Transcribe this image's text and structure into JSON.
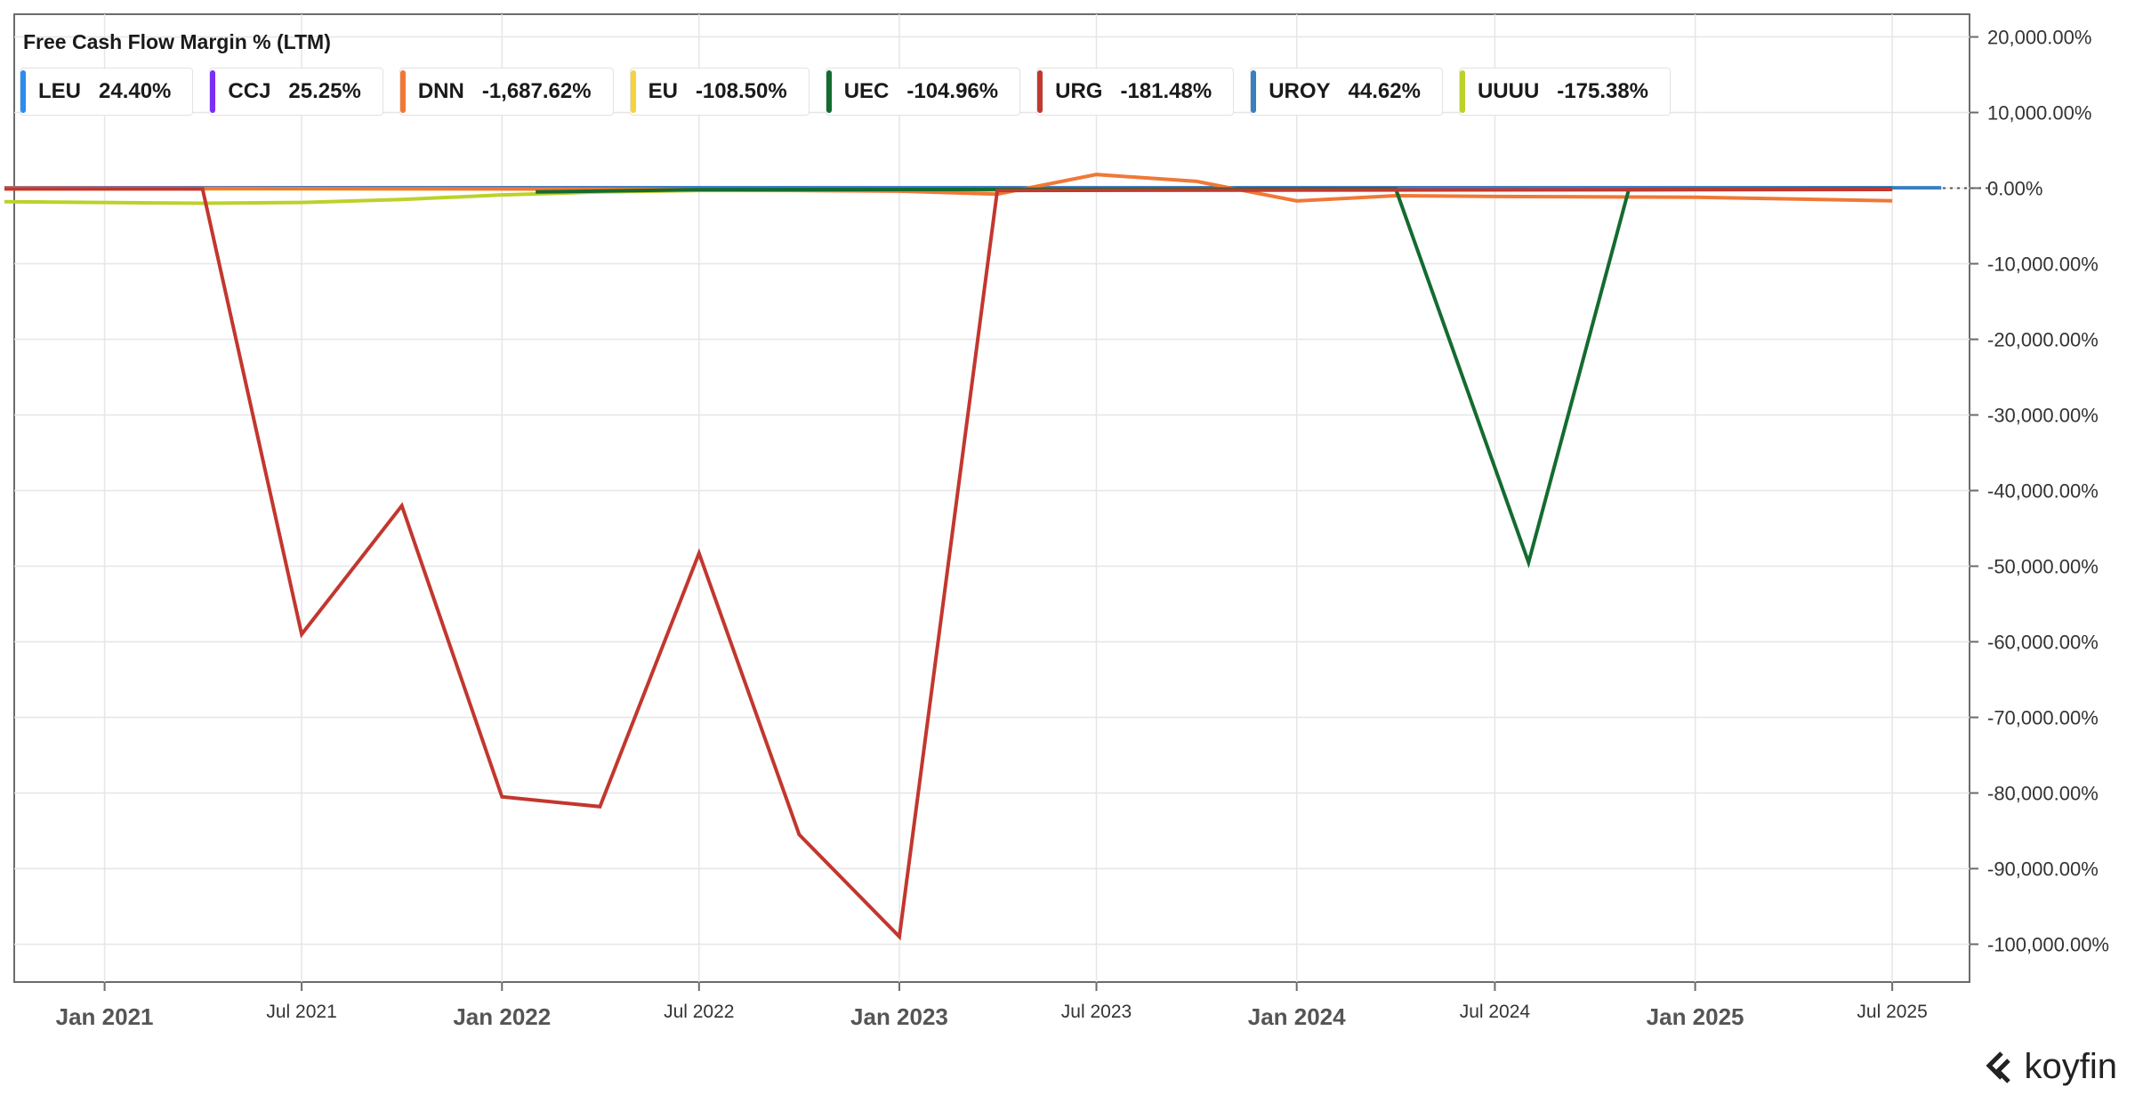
{
  "brand": {
    "name": "koyfin"
  },
  "legend": [
    {
      "symbol": "LEU",
      "value": "24.40%",
      "color": "#2a8cf0"
    },
    {
      "symbol": "CCJ",
      "value": "25.25%",
      "color": "#7b2ff2"
    },
    {
      "symbol": "DNN",
      "value": "-1,687.62%",
      "color": "#f07836"
    },
    {
      "symbol": "EU",
      "value": "-108.50%",
      "color": "#f7d23a"
    },
    {
      "symbol": "UEC",
      "value": "-104.96%",
      "color": "#146b30"
    },
    {
      "symbol": "URG",
      "value": "-181.48%",
      "color": "#c2372e"
    },
    {
      "symbol": "UROY",
      "value": "44.62%",
      "color": "#3a7fbf"
    },
    {
      "symbol": "UUUU",
      "value": "-175.38%",
      "color": "#bcd12a"
    }
  ],
  "chart_data": {
    "type": "line",
    "title": "Free Cash Flow Margin % (LTM)",
    "ylim": [
      -105000,
      23000
    ],
    "xlim": [
      "2020-10-10",
      "2025-09-10"
    ],
    "y_ticks": [
      20000,
      10000,
      0,
      -10000,
      -20000,
      -30000,
      -40000,
      -50000,
      -60000,
      -70000,
      -80000,
      -90000,
      -100000
    ],
    "y_tick_labels": [
      "20,000.00%",
      "10,000.00%",
      "0.00%",
      "-10,000.00%",
      "-20,000.00%",
      "-30,000.00%",
      "-40,000.00%",
      "-50,000.00%",
      "-60,000.00%",
      "-70,000.00%",
      "-80,000.00%",
      "-90,000.00%",
      "-100,000.00%"
    ],
    "x_ticks": [
      {
        "date": "2021-01-01",
        "label": "Jan 2021",
        "major": true
      },
      {
        "date": "2021-07-01",
        "label": "Jul 2021",
        "major": false
      },
      {
        "date": "2022-01-01",
        "label": "Jan 2022",
        "major": true
      },
      {
        "date": "2022-07-01",
        "label": "Jul 2022",
        "major": false
      },
      {
        "date": "2023-01-01",
        "label": "Jan 2023",
        "major": true
      },
      {
        "date": "2023-07-01",
        "label": "Jul 2023",
        "major": false
      },
      {
        "date": "2024-01-01",
        "label": "Jan 2024",
        "major": true
      },
      {
        "date": "2024-07-01",
        "label": "Jul 2024",
        "major": false
      },
      {
        "date": "2025-01-01",
        "label": "Jan 2025",
        "major": true
      },
      {
        "date": "2025-07-01",
        "label": "Jul 2025",
        "major": false
      }
    ],
    "grid": true,
    "legend_position": "top-left",
    "series": [
      {
        "name": "UUUU",
        "color": "#bcd12a",
        "points": [
          [
            "2020-10-01",
            -1800
          ],
          [
            "2021-04-01",
            -2000
          ],
          [
            "2021-07-01",
            -1900
          ],
          [
            "2021-10-01",
            -1500
          ],
          [
            "2022-01-01",
            -900
          ],
          [
            "2022-04-01",
            -500
          ],
          [
            "2022-07-01",
            -300
          ],
          [
            "2022-10-01",
            -300
          ],
          [
            "2023-01-01",
            -350
          ],
          [
            "2023-04-01",
            -250
          ],
          [
            "2023-07-01",
            -150
          ],
          [
            "2024-01-01",
            -180
          ],
          [
            "2025-07-01",
            -175
          ]
        ]
      },
      {
        "name": "EU",
        "color": "#f7d23a",
        "points": [
          [
            "2020-10-01",
            -100
          ],
          [
            "2022-10-01",
            -100
          ],
          [
            "2023-01-01",
            -200
          ],
          [
            "2023-04-01",
            -150
          ],
          [
            "2025-07-01",
            -108
          ]
        ]
      },
      {
        "name": "LEU",
        "color": "#2a8cf0",
        "points": [
          [
            "2020-10-01",
            20
          ],
          [
            "2025-07-01",
            24
          ]
        ]
      },
      {
        "name": "CCJ",
        "color": "#7b2ff2",
        "points": [
          [
            "2020-10-01",
            20
          ],
          [
            "2025-07-01",
            25
          ]
        ]
      },
      {
        "name": "UROY",
        "color": "#3a7fbf",
        "points": [
          [
            "2020-10-01",
            40
          ],
          [
            "2025-08-15",
            45
          ]
        ]
      },
      {
        "name": "DNN",
        "color": "#f07836",
        "points": [
          [
            "2020-10-01",
            0
          ],
          [
            "2022-01-01",
            -100
          ],
          [
            "2022-07-01",
            -200
          ],
          [
            "2023-01-01",
            -400
          ],
          [
            "2023-04-01",
            -800
          ],
          [
            "2023-07-01",
            1800
          ],
          [
            "2023-10-01",
            900
          ],
          [
            "2024-01-01",
            -1700
          ],
          [
            "2024-04-01",
            -1000
          ],
          [
            "2024-07-01",
            -1100
          ],
          [
            "2025-01-01",
            -1200
          ],
          [
            "2025-07-01",
            -1688
          ]
        ]
      },
      {
        "name": "UEC",
        "color": "#146b30",
        "points": [
          [
            "2022-02-01",
            -500
          ],
          [
            "2022-07-01",
            -200
          ],
          [
            "2024-04-01",
            -100
          ],
          [
            "2024-08-01",
            -49500
          ],
          [
            "2024-11-01",
            -200
          ],
          [
            "2025-07-01",
            -105
          ]
        ]
      },
      {
        "name": "URG",
        "color": "#c2372e",
        "points": [
          [
            "2020-10-01",
            -100
          ],
          [
            "2021-04-01",
            -100
          ],
          [
            "2021-07-01",
            -59000
          ],
          [
            "2021-10-01",
            -42000
          ],
          [
            "2022-01-01",
            -80500
          ],
          [
            "2022-04-01",
            -81800
          ],
          [
            "2022-07-01",
            -48300
          ],
          [
            "2022-10-01",
            -85500
          ],
          [
            "2023-01-01",
            -99000
          ],
          [
            "2023-04-01",
            -300
          ],
          [
            "2025-07-01",
            -181
          ]
        ]
      }
    ]
  }
}
